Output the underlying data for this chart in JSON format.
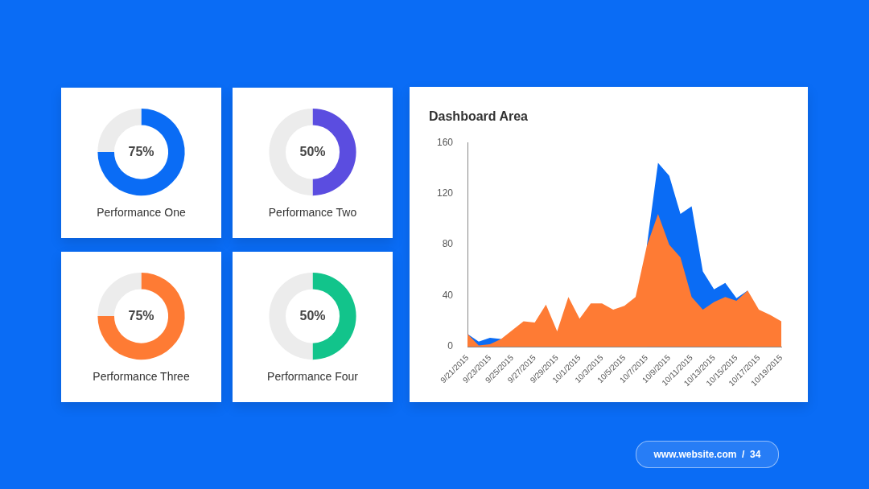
{
  "chart_data": [
    {
      "type": "donut",
      "title": "Performance One",
      "categories": [
        null,
        null
      ],
      "values": [
        75,
        25
      ],
      "colors": [
        "#0a6cf5",
        "#ececec"
      ],
      "value_labels": [
        "75%",
        null
      ]
    },
    {
      "type": "donut",
      "title": "Performance Two",
      "categories": [
        null,
        null
      ],
      "values": [
        50,
        50
      ],
      "colors": [
        "#5b4de0",
        "#ececec"
      ],
      "value_labels": [
        "50%",
        null
      ]
    },
    {
      "type": "donut",
      "title": "Performance Three",
      "categories": [
        null,
        null
      ],
      "values": [
        75,
        25
      ],
      "colors": [
        "#fe7b34",
        "#ececec"
      ],
      "value_labels": [
        "75%",
        null
      ]
    },
    {
      "type": "donut",
      "title": "Performance Four",
      "categories": [
        null,
        null
      ],
      "values": [
        50,
        50
      ],
      "colors": [
        "#12c48b",
        "#ececec"
      ],
      "value_labels": [
        "50%",
        null
      ]
    },
    {
      "type": "area",
      "title": "Dashboard Area",
      "categories": [
        "9/21/2015",
        null,
        "9/23/2015",
        null,
        "9/25/2015",
        null,
        "9/27/2015",
        null,
        "9/29/2015",
        null,
        "10/1/2015",
        null,
        "10/3/2015",
        null,
        "10/5/2015",
        null,
        "10/7/2015",
        null,
        "10/9/2015",
        null,
        "10/11/2015",
        null,
        "10/13/2015",
        null,
        "10/15/2015",
        null,
        "10/17/2015",
        null,
        "10/19/2015"
      ],
      "series": [
        {
          "color": "#fe7b34",
          "values": [
            10,
            1,
            2,
            6,
            13,
            20,
            19,
            33,
            12,
            39,
            22,
            34,
            34,
            29,
            32,
            39,
            79,
            104,
            80,
            70,
            39,
            29,
            35,
            39,
            36,
            44,
            29,
            25,
            20
          ]
        },
        {
          "color": "#0a6cf5",
          "values": [
            10,
            4,
            7,
            6,
            null,
            null,
            null,
            null,
            null,
            null,
            null,
            null,
            null,
            null,
            null,
            null,
            79,
            144,
            134,
            104,
            110,
            59,
            45,
            50,
            38,
            44,
            null,
            null,
            null
          ]
        }
      ],
      "ylim": [
        0,
        160
      ],
      "yticks": [
        0,
        40,
        80,
        120,
        160
      ],
      "grid": false,
      "legend": false,
      "marker": "none"
    },
    {
      "type": "other",
      "annotations": [
        "www.website.com  /  34"
      ]
    }
  ]
}
